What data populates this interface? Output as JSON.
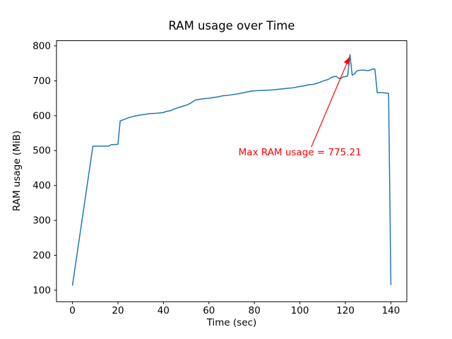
{
  "chart_data": {
    "type": "line",
    "title": "RAM usage over Time",
    "xlabel": "Time (sec)",
    "ylabel": "RAM usage (MiB)",
    "xlim": [
      -7,
      147
    ],
    "ylim": [
      67,
      815
    ],
    "xticks": [
      0,
      20,
      40,
      60,
      80,
      100,
      120,
      140
    ],
    "yticks": [
      100,
      200,
      300,
      400,
      500,
      600,
      700,
      800
    ],
    "grid": false,
    "legend": "none",
    "line_color": "#1f77b4",
    "series": [
      {
        "name": "RAM usage (MiB)",
        "x": [
          0,
          9,
          16,
          17,
          20,
          21,
          25,
          28,
          31,
          34,
          37,
          40,
          41,
          43,
          45,
          47,
          50,
          52,
          54,
          56,
          58,
          60,
          62,
          64,
          66,
          68,
          70,
          73,
          76,
          79,
          82,
          85,
          88,
          91,
          94,
          97,
          100,
          102,
          104,
          106,
          108,
          110,
          112,
          113,
          114,
          115,
          116,
          117,
          118,
          119,
          120,
          121,
          122,
          123,
          124,
          125,
          126,
          128,
          130,
          131,
          132,
          133,
          134,
          136,
          138,
          139,
          140
        ],
        "y": [
          113,
          513,
          513,
          517,
          518,
          585,
          595,
          600,
          603,
          606,
          607,
          609,
          612,
          614,
          620,
          624,
          630,
          636,
          645,
          647,
          649,
          650,
          652,
          654,
          657,
          658,
          660,
          663,
          667,
          671,
          672,
          673,
          674,
          676,
          678,
          680,
          684,
          686,
          689,
          690,
          694,
          699,
          703,
          706,
          710,
          712,
          713,
          707,
          707,
          711,
          712,
          714,
          775.21,
          716,
          720,
          728,
          730,
          731,
          729,
          731,
          734,
          733,
          666,
          666,
          665,
          664,
          115
        ]
      }
    ],
    "max_value": 775.21,
    "max_time": 122,
    "annotation": {
      "text": "Max RAM usage = 775.21",
      "color": "#ff0000",
      "xy": [
        121.8,
        768
      ],
      "text_xy": [
        73,
        486
      ],
      "arrow_start": [
        105,
        510
      ]
    }
  }
}
